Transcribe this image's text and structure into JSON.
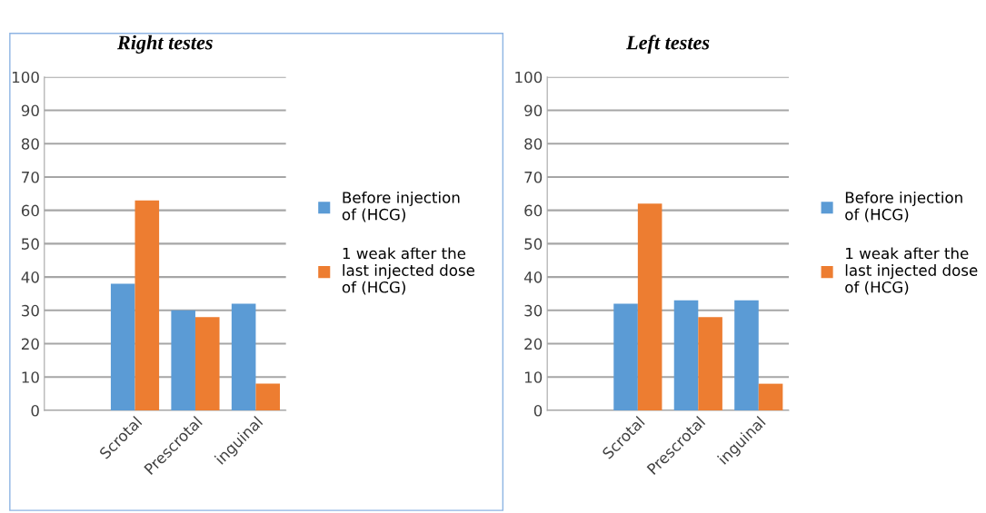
{
  "chart_data": [
    {
      "type": "bar",
      "title": "Right testes",
      "categories": [
        null,
        "Scrotal",
        "Prescrotal",
        "inguinal"
      ],
      "series": [
        {
          "name": "Before injection of (HCG)",
          "color": "#5b9bd5",
          "values": [
            null,
            38,
            30,
            32
          ]
        },
        {
          "name": "1 weak after the last injected dose of (HCG)",
          "color": "#ed7d31",
          "values": [
            null,
            63,
            28,
            8
          ]
        }
      ],
      "ylim": [
        0,
        100
      ],
      "yticks": [
        0,
        10,
        20,
        30,
        40,
        50,
        60,
        70,
        80,
        90,
        100
      ],
      "grid": "y",
      "legend": "right"
    },
    {
      "type": "bar",
      "title": "Left testes",
      "categories": [
        null,
        "Scrotal",
        "Prescrotal",
        "inguinal"
      ],
      "series": [
        {
          "name": "Before injection of (HCG)",
          "color": "#5b9bd5",
          "values": [
            null,
            32,
            33,
            33
          ]
        },
        {
          "name": "1 weak after the last injected dose of (HCG)",
          "color": "#ed7d31",
          "values": [
            null,
            62,
            28,
            8
          ]
        }
      ],
      "ylim": [
        0,
        100
      ],
      "yticks": [
        0,
        10,
        20,
        30,
        40,
        50,
        60,
        70,
        80,
        90,
        100
      ],
      "grid": "y",
      "legend": "right"
    }
  ]
}
